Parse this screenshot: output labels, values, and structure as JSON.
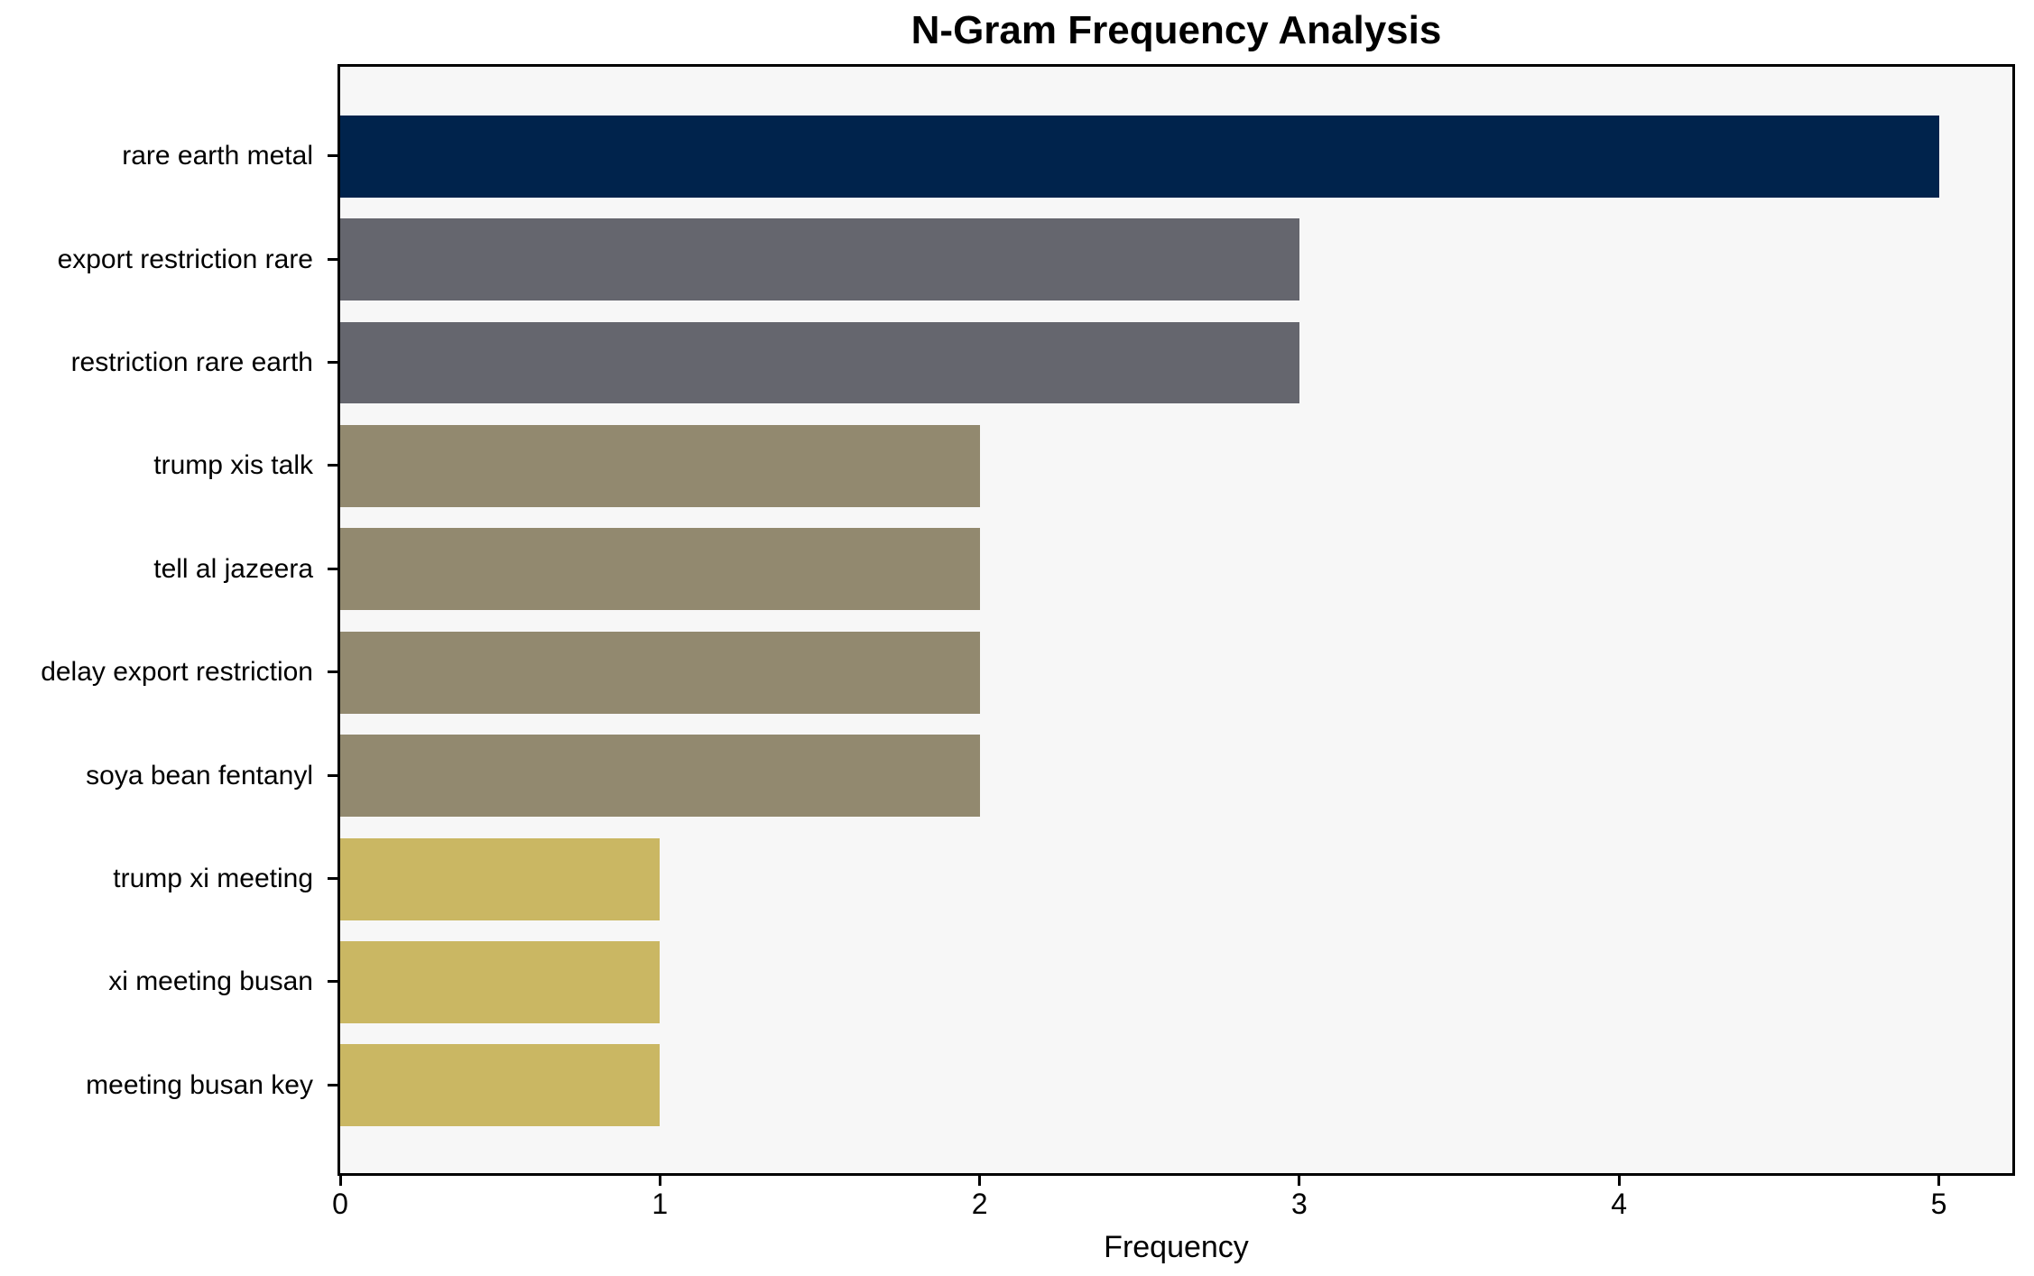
{
  "page": {
    "background": "#ffffff"
  },
  "chart_data": {
    "type": "bar",
    "orientation": "horizontal",
    "title": "N-Gram Frequency Analysis",
    "xlabel": "Frequency",
    "ylabel": "",
    "categories": [
      "rare earth metal",
      "export restriction rare",
      "restriction rare earth",
      "trump xis talk",
      "tell al jazeera",
      "delay export restriction",
      "soya bean fentanyl",
      "trump xi meeting",
      "xi meeting busan",
      "meeting busan key"
    ],
    "values": [
      5,
      3,
      3,
      2,
      2,
      2,
      2,
      1,
      1,
      1
    ],
    "bar_colors": [
      "#00234c",
      "#65666e",
      "#65666e",
      "#92896f",
      "#92896f",
      "#92896f",
      "#92896f",
      "#cab763",
      "#cab763",
      "#cab763"
    ],
    "xticks": [
      0,
      1,
      2,
      3,
      4,
      5
    ],
    "xlim": [
      0,
      5.23
    ],
    "grid": false,
    "legend": null,
    "plot_background": "#f7f7f7",
    "spine_color": "#000000"
  }
}
